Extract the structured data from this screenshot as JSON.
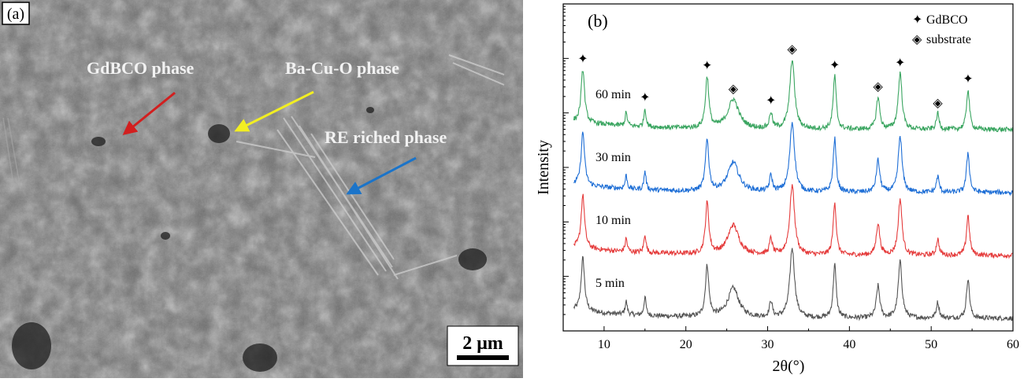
{
  "panel_a": {
    "panel_label": "(a)",
    "annotations": [
      {
        "label": "GdBCO phase",
        "arrow_color": "#d21f1f"
      },
      {
        "label": "Ba-Cu-O phase",
        "arrow_color": "#f2ee22"
      },
      {
        "label": "RE riched phase",
        "arrow_color": "#1b74c9"
      }
    ],
    "scale_bar_label": "2 μm"
  },
  "chart_data": {
    "type": "line",
    "panel_label": "(b)",
    "xlabel": "2θ(°)",
    "ylabel": "Intensity",
    "xlim": [
      5,
      60
    ],
    "x_ticks": [
      10,
      20,
      30,
      40,
      50,
      60
    ],
    "y_ticks_labeled": false,
    "legend": {
      "placement": "top-right",
      "entries": [
        {
          "symbol": "✦",
          "label": "GdBCO"
        },
        {
          "symbol": "◈",
          "label": "substrate"
        }
      ]
    },
    "baseline_offsets": [
      0,
      1,
      2,
      3
    ],
    "series": [
      {
        "name": "5 min",
        "color": "#555555",
        "offset": 0
      },
      {
        "name": "10 min",
        "color": "#e53c3c",
        "offset": 1
      },
      {
        "name": "30 min",
        "color": "#1f6fd6",
        "offset": 2
      },
      {
        "name": "60 min",
        "color": "#3aa560",
        "offset": 3
      }
    ],
    "peaks": [
      {
        "x": 7.4,
        "h": 1.0,
        "w": 0.25
      },
      {
        "x": 12.7,
        "h": 0.25,
        "w": 0.15
      },
      {
        "x": 15.0,
        "h": 0.35,
        "w": 0.15
      },
      {
        "x": 22.6,
        "h": 0.95,
        "w": 0.25
      },
      {
        "x": 25.8,
        "h": 0.55,
        "w": 0.8
      },
      {
        "x": 30.4,
        "h": 0.3,
        "w": 0.2
      },
      {
        "x": 33.0,
        "h": 1.3,
        "w": 0.35
      },
      {
        "x": 38.2,
        "h": 1.0,
        "w": 0.22
      },
      {
        "x": 43.5,
        "h": 0.6,
        "w": 0.25
      },
      {
        "x": 46.2,
        "h": 1.05,
        "w": 0.28
      },
      {
        "x": 50.8,
        "h": 0.3,
        "w": 0.2
      },
      {
        "x": 54.5,
        "h": 0.75,
        "w": 0.22
      }
    ],
    "markers": [
      {
        "x": 7.4,
        "symbol": "✦",
        "phase": "GdBCO"
      },
      {
        "x": 15.0,
        "symbol": "✦",
        "phase": "GdBCO"
      },
      {
        "x": 22.6,
        "symbol": "✦",
        "phase": "GdBCO"
      },
      {
        "x": 25.8,
        "symbol": "◈",
        "phase": "substrate"
      },
      {
        "x": 30.4,
        "symbol": "✦",
        "phase": "GdBCO"
      },
      {
        "x": 33.0,
        "symbol": "◈",
        "phase": "substrate"
      },
      {
        "x": 38.2,
        "symbol": "✦",
        "phase": "GdBCO"
      },
      {
        "x": 43.5,
        "symbol": "◈",
        "phase": "substrate"
      },
      {
        "x": 46.2,
        "symbol": "✦",
        "phase": "GdBCO"
      },
      {
        "x": 50.8,
        "symbol": "◈",
        "phase": "substrate"
      },
      {
        "x": 54.5,
        "symbol": "✦",
        "phase": "GdBCO"
      }
    ]
  }
}
